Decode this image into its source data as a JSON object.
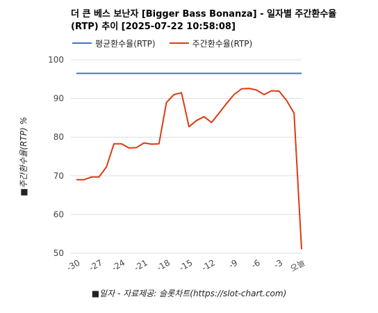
{
  "header": {
    "title_line1": "더 큰 베스 보난자 [Bigger Bass Bonanza] - 일자별 주간환수율",
    "title_line2": "(RTP) 추이 [2025-07-22 10:58:08]"
  },
  "chart_data": {
    "type": "line",
    "ylabel": "■주간환수율(RTP) %",
    "xlabel": "■일자 - 자료제공: 슬롯차트(https://slot-chart.com)",
    "ylim": [
      50,
      100
    ],
    "y_ticks": [
      "50",
      "60",
      "70",
      "80",
      "90",
      "100"
    ],
    "x_tick_labels": [
      "-30",
      "-27",
      "-24",
      "-21",
      "-18",
      "-15",
      "-12",
      "-9",
      "-6",
      "-3",
      "오늘"
    ],
    "grid": true,
    "legend_position": "top-left",
    "x": [
      -30,
      -29,
      -28,
      -27,
      -26,
      -25,
      -24,
      -23,
      -22,
      -21,
      -20,
      -19,
      -18,
      -17,
      -16,
      -15,
      -14,
      -13,
      -12,
      -11,
      -10,
      -9,
      -8,
      -7,
      -6,
      -5,
      -4,
      -3,
      -2,
      -1,
      0
    ],
    "series": [
      {
        "name": "평균환수율(RTP)",
        "color": "#4472c4",
        "values": [
          96.5,
          96.5,
          96.5,
          96.5,
          96.5,
          96.5,
          96.5,
          96.5,
          96.5,
          96.5,
          96.5,
          96.5,
          96.5,
          96.5,
          96.5,
          96.5,
          96.5,
          96.5,
          96.5,
          96.5,
          96.5,
          96.5,
          96.5,
          96.5,
          96.5,
          96.5,
          96.5,
          96.5,
          96.5,
          96.5,
          96.5
        ]
      },
      {
        "name": "주간환수율(RTP)",
        "color": "#dc3912",
        "values": [
          69.0,
          69.0,
          69.7,
          69.7,
          72.3,
          78.3,
          78.3,
          77.2,
          77.3,
          78.5,
          78.2,
          78.3,
          89.0,
          91.0,
          91.5,
          82.7,
          84.3,
          85.3,
          83.8,
          86.2,
          88.7,
          91.0,
          92.5,
          92.6,
          92.2,
          91.0,
          92.0,
          91.9,
          89.5,
          86.2,
          51.0
        ]
      }
    ]
  }
}
